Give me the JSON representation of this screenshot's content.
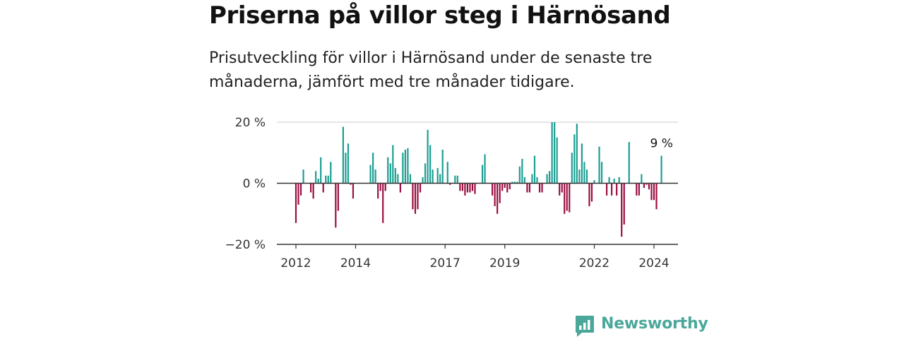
{
  "header": {
    "title": "Priserna på villor steg i Härnösand",
    "subtitle": "Prisutveckling för villor i Härnösand under de senaste tre månaderna, jämfört med tre månader tidigare."
  },
  "brand": {
    "name": "Newsworthy",
    "icon": "newsworthy-logo-icon"
  },
  "colors": {
    "positive": "#1a9e92",
    "negative": "#9b0d42",
    "axis": "#333333",
    "grid": "#dddddd",
    "brand": "#4aa79a"
  },
  "chart_data": {
    "type": "bar",
    "title": "Priserna på villor steg i Härnösand",
    "xlabel": "",
    "ylabel": "",
    "ylim": [
      -20,
      20
    ],
    "yticks": [
      {
        "value": 20,
        "label": "20 %"
      },
      {
        "value": 0,
        "label": "0 %"
      },
      {
        "value": -20,
        "label": "−20 %"
      }
    ],
    "xticks": [
      {
        "value": 2012.0,
        "label": "2012"
      },
      {
        "value": 2014.0,
        "label": "2014"
      },
      {
        "value": 2017.0,
        "label": "2017"
      },
      {
        "value": 2019.0,
        "label": "2019"
      },
      {
        "value": 2022.0,
        "label": "2022"
      },
      {
        "value": 2024.0,
        "label": "2024"
      }
    ],
    "x_start": 2012.0,
    "x_step": 0.08333,
    "grid": "horizontal",
    "last_value_label": "9 %",
    "values": [
      -13,
      -7,
      -4,
      4.5,
      0,
      0,
      -3,
      -5,
      4,
      1.5,
      8.5,
      -3,
      2.5,
      2.5,
      7,
      0,
      -14.5,
      -9,
      0,
      18.5,
      10,
      13,
      -0.5,
      -5,
      0,
      0,
      0,
      0,
      0,
      0,
      6,
      10,
      4.5,
      -5,
      -2.5,
      -13,
      -2.5,
      8.5,
      6.5,
      12.5,
      5,
      3,
      -3,
      10,
      11,
      11.5,
      3,
      -8.5,
      -10,
      -8.5,
      -3,
      2,
      6.5,
      17.5,
      12.5,
      4.5,
      0,
      5,
      3,
      11,
      0,
      7,
      -0.5,
      0,
      2.5,
      2.5,
      -2.5,
      -2.5,
      -4,
      -3,
      -3,
      -2.5,
      -3.5,
      0,
      0,
      6,
      9.5,
      0,
      0,
      -4,
      -7.5,
      -10,
      -6.5,
      -2.5,
      -1.5,
      -3,
      -2,
      0.5,
      0.5,
      0.5,
      5.5,
      8,
      2,
      -3,
      -3,
      3,
      9,
      2,
      -3,
      -3,
      0,
      3,
      4,
      20,
      20,
      15,
      -4,
      -3,
      -10,
      -9,
      -9.5,
      10,
      16,
      19.5,
      4.5,
      13,
      7,
      4.5,
      -7.5,
      -6,
      1,
      0,
      12,
      7,
      0,
      -4,
      2,
      -4,
      1.5,
      -4,
      2,
      -17.5,
      -13.5,
      0,
      13.5,
      0,
      0,
      -4,
      -4,
      3,
      -1.5,
      -0.5,
      -2,
      -5.5,
      -5.5,
      -8.5,
      0,
      9
    ]
  }
}
